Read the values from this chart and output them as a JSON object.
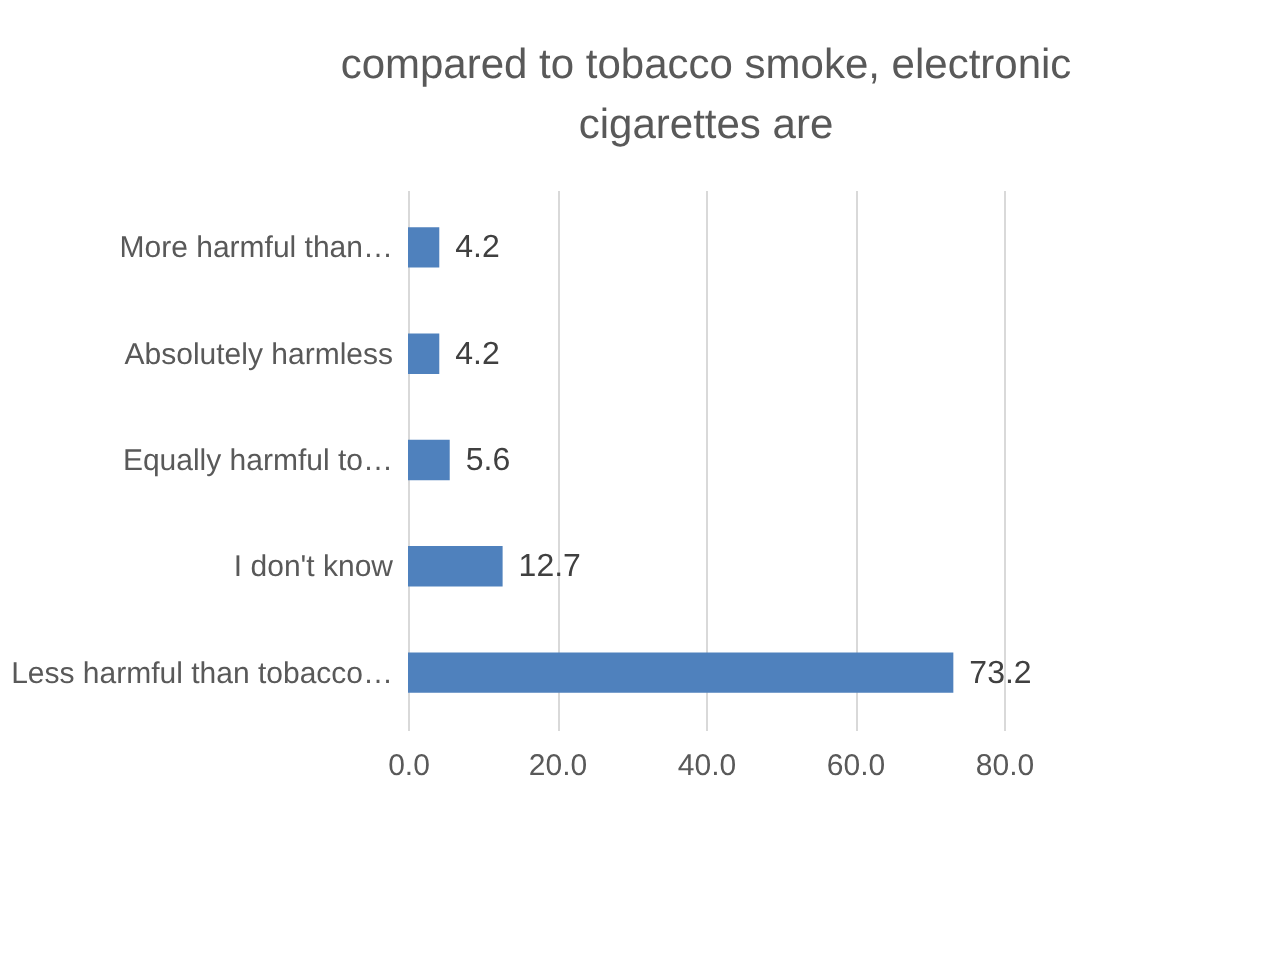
{
  "chart_data": {
    "type": "bar",
    "orientation": "horizontal",
    "title": "compared to tobacco smoke, electronic cigarettes are",
    "categories": [
      "More harmful than…",
      "Absolutely harmless",
      "Equally harmful to…",
      "I don't know",
      "Less harmful than tobacco…"
    ],
    "values": [
      4.2,
      4.2,
      5.6,
      12.7,
      73.2
    ],
    "color": "#4f81bd",
    "xlim": [
      0,
      80
    ],
    "xticks": [
      {
        "value": 0,
        "label": "0.0"
      },
      {
        "value": 20,
        "label": "20.0"
      },
      {
        "value": 40,
        "label": "40.0"
      },
      {
        "value": 60,
        "label": "60.0"
      },
      {
        "value": 80,
        "label": "80.0"
      }
    ],
    "grid": "x",
    "data_labels": true
  }
}
